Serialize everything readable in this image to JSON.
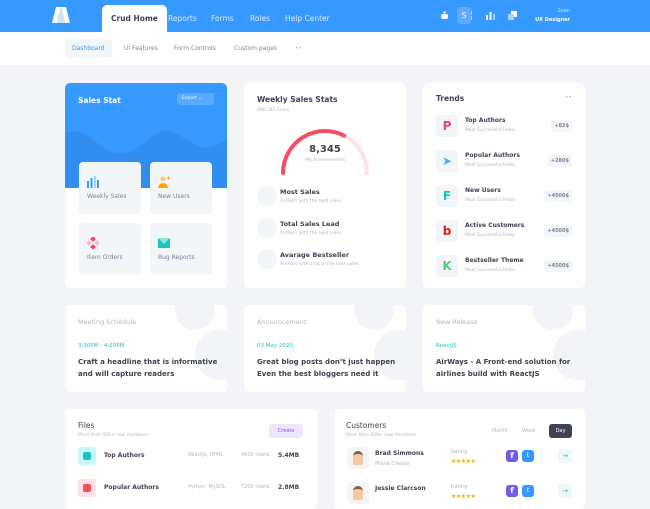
{
  "header": {
    "tabs": [
      "Crud Home",
      "Reports",
      "Forms",
      "Roles",
      "Help Center"
    ],
    "user_name": "Sean",
    "user_role": "UX Designer",
    "avatar_letter": "S",
    "icons": [
      "robot-icon",
      "grid-icon",
      "chart-icon",
      "window-icon"
    ],
    "accent": "#3699ff"
  },
  "subnav": {
    "items": [
      "Dashboard",
      "UI Features",
      "Form Controls",
      "Custom pages"
    ],
    "more": "••"
  },
  "sales_stat": {
    "title": "Sales Stat",
    "export": "Export",
    "tiles": [
      {
        "label": "Weekly Sales",
        "icon": "bar-chart-icon"
      },
      {
        "label": "New Users",
        "icon": "add-user-icon"
      },
      {
        "label": "Item Orders",
        "icon": "diamond-icon"
      },
      {
        "label": "Bug Reports",
        "icon": "mail-icon"
      }
    ]
  },
  "weekly": {
    "title": "Weekly Sales Stats",
    "subtitle": "890,344 Sales",
    "value": "8,345",
    "value_label": "My Achievements",
    "progress_percent": 65,
    "rows": [
      {
        "title": "Most Sales",
        "sub": "Authors with the best sales"
      },
      {
        "title": "Total Sales Lead",
        "sub": "Authors with the best sales"
      },
      {
        "title": "Avarage Bestseller",
        "sub": "Authors with a lot of the best sales"
      }
    ]
  },
  "trends": {
    "title": "Trends",
    "more": "••",
    "items": [
      {
        "title": "Top Authors",
        "sub": "Most Successful Fellas",
        "value": "+82$",
        "glyph": "P",
        "color": "#f1416c"
      },
      {
        "title": "Popular Authors",
        "sub": "Most Successful Fellas",
        "value": "+280$",
        "glyph": "➤",
        "color": "#3ab4f2"
      },
      {
        "title": "New Users",
        "sub": "Most Successful Fellas",
        "value": "+4500$",
        "glyph": "F",
        "color": "#1bc5bd"
      },
      {
        "title": "Active Customers",
        "sub": "Most Successful Fellas",
        "value": "+4500$",
        "glyph": "b",
        "color": "#e21b1b"
      },
      {
        "title": "Bestseller Theme",
        "sub": "Most Successful Fellas",
        "value": "+4500$",
        "glyph": "K",
        "color": "#4fd17a"
      }
    ]
  },
  "events": [
    {
      "kind": "Meeting Schedule",
      "date": "3:30PM - 4:20PM",
      "text": "Craft a headline that is informative and will capture readers"
    },
    {
      "kind": "Announcement",
      "date": "03 May 2020",
      "text": "Great blog posts don’t just happen Even the best bloggers need it"
    },
    {
      "kind": "New Release",
      "date": "ReactJS",
      "text": "AirWays - A Front-end solution for airlines build with ReactJS"
    }
  ],
  "files": {
    "title": "Files",
    "sub": "More than 400+ new members",
    "create": "Create",
    "rows": [
      {
        "name": "Top Authors",
        "tech": "ReactJs, HTML",
        "users": "4600 Users",
        "size": "5.4MB"
      },
      {
        "name": "Popular Authors",
        "tech": "Python, MySQL",
        "users": "7200 Users",
        "size": "2.8MB"
      }
    ]
  },
  "customers": {
    "title": "Customers",
    "sub": "More than 400+ new members",
    "tabs": [
      "Month",
      "Week",
      "Day"
    ],
    "rating_label": "Rating",
    "rows": [
      {
        "name": "Brad Simmons",
        "role": "Movie Creator",
        "rating": 5
      },
      {
        "name": "Jessie Clarcson",
        "role": "",
        "rating": 5
      }
    ]
  }
}
